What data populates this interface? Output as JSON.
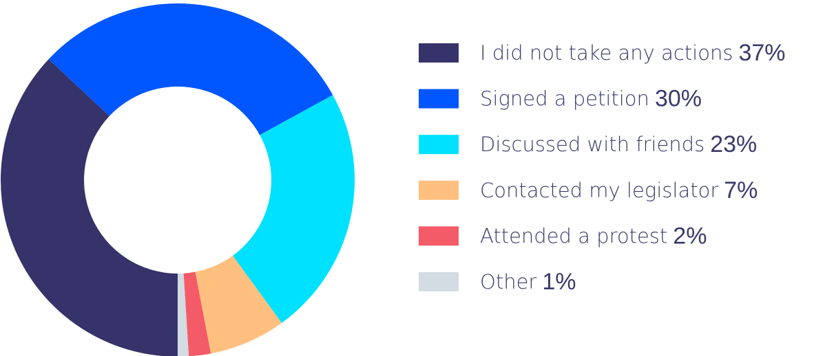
{
  "chart_data": {
    "type": "pie",
    "donut": true,
    "categories": [
      "I did not take any actions",
      "Signed a petition",
      "Discussed with friends",
      "Contacted my legislator",
      "Attended a protest",
      "Other"
    ],
    "values": [
      37,
      30,
      23,
      7,
      2,
      1
    ],
    "value_labels": [
      "37%",
      "30%",
      "23%",
      "7%",
      "2%",
      "1%"
    ],
    "colors": [
      "#36336a",
      "#0057ff",
      "#00e1ff",
      "#ffc07f",
      "#f45b69",
      "#d3dce3"
    ]
  }
}
